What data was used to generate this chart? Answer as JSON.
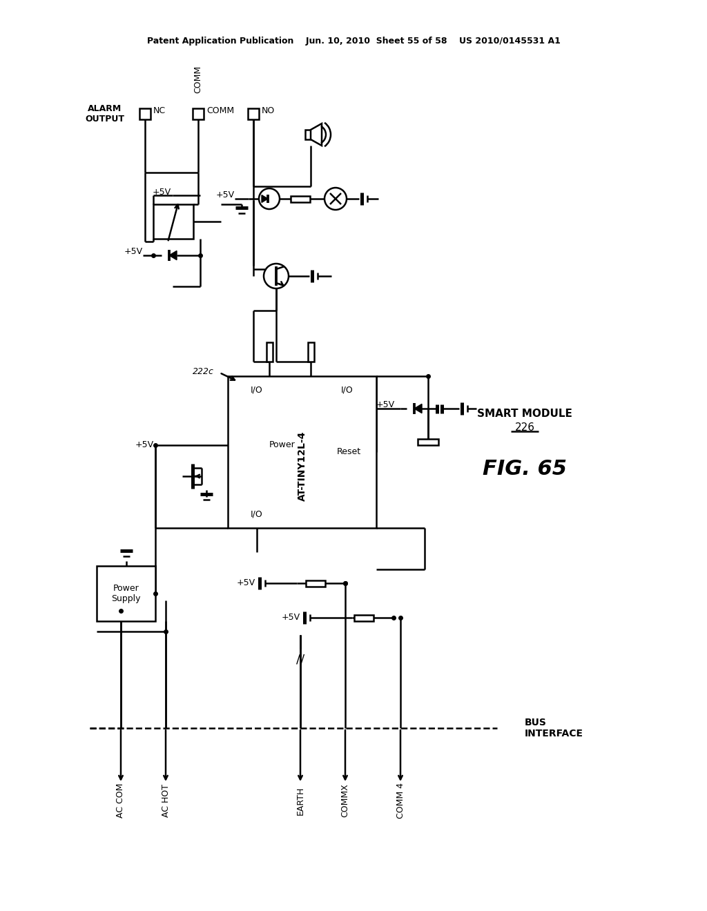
{
  "header": "Patent Application Publication    Jun. 10, 2010  Sheet 55 of 58    US 2010/0145531 A1",
  "fig_label": "FIG. 65",
  "smart_module_label": "SMART MODULE",
  "smart_module_num": "226",
  "chip_label": "AT-TINY12L-4",
  "ref_num": "222c",
  "bus_labels": [
    "AC COM",
    "AC HOT",
    "EARTH",
    "COMMX",
    "COMM 4"
  ],
  "bus_interface": "BUS\nINTERFACE",
  "power_supply_label": "Power\nSupply",
  "alarm_output": "ALARM\nOUTPUT",
  "nc_label": "NC",
  "comm_label": "COMM",
  "no_label": "NO",
  "voltage_5v": "+5V",
  "bg_color": "#ffffff",
  "fg_color": "#000000",
  "line_width": 1.8
}
